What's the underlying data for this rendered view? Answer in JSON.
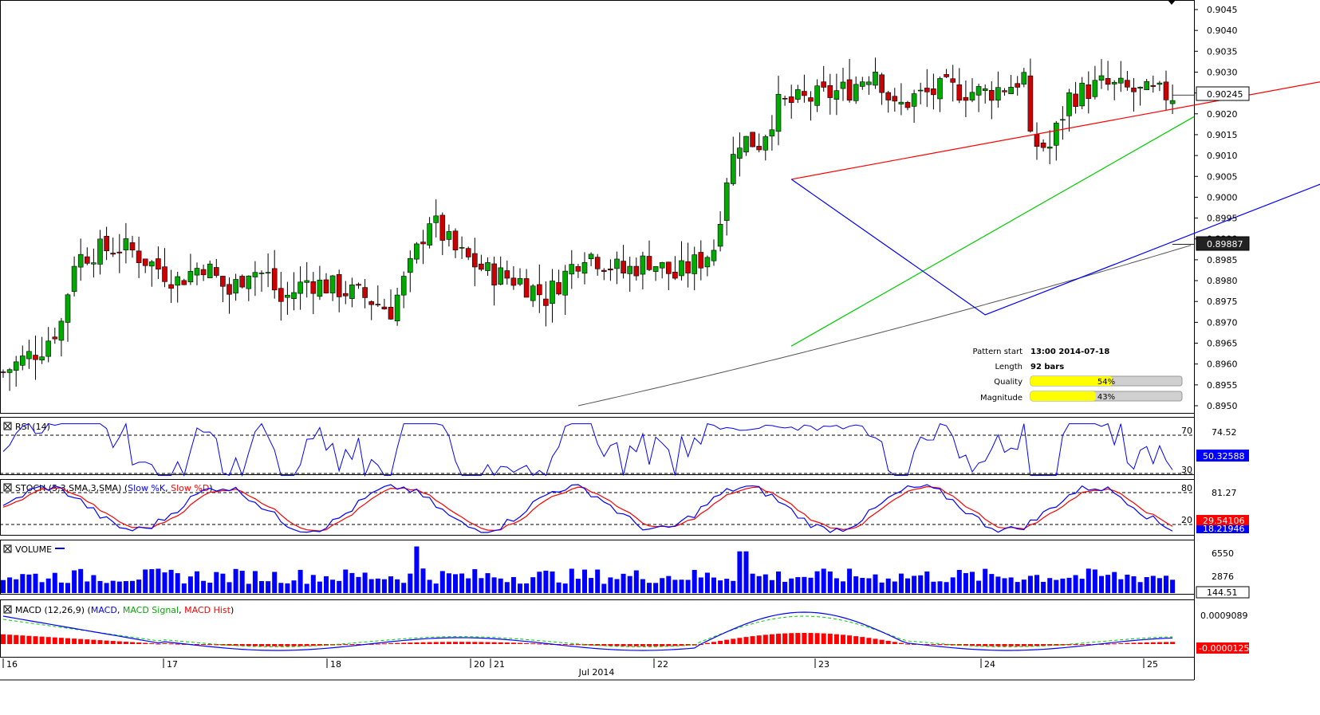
{
  "chart_data": {
    "type": "candlestick",
    "main": {
      "yaxis_ticks": [
        "0.9045",
        "0.9040",
        "0.9035",
        "0.9030",
        "0.9025",
        "0.9020",
        "0.9015",
        "0.9010",
        "0.9005",
        "0.9000",
        "0.8995",
        "0.8990",
        "0.8985",
        "0.8980",
        "0.8975",
        "0.8970",
        "0.8965",
        "0.8960",
        "0.8955",
        "0.8950"
      ],
      "ylim": [
        0.89465,
        0.9047
      ],
      "last_price": "0.90245",
      "ma_value": "0.89887",
      "resistance_line": {
        "color": "#ff0000",
        "from": [
          122,
          0.90043
        ],
        "to": [
          273,
          0.90474
        ]
      },
      "support_line": {
        "color": "#00cc00",
        "from": [
          122,
          0.89643
        ],
        "to": [
          293,
          0.90193
        ]
      },
      "zigzag": {
        "color": "#0000ff",
        "points": [
          [
            122,
            0.90043
          ],
          [
            152,
            0.89718
          ],
          [
            252,
            0.90322
          ],
          [
            302,
            0.90088
          ]
        ]
      }
    },
    "pattern_info": [
      {
        "label": "Pattern start",
        "value": "13:00 2014-07-18"
      },
      {
        "label": "Length",
        "value": "92 bars"
      },
      {
        "label": "Quality",
        "value": "54%",
        "fraction": 0.54
      },
      {
        "label": "Magnitude",
        "value": "43%",
        "fraction": 0.43
      }
    ],
    "panels": {
      "rsi": {
        "title": "RSI (14)",
        "levels": [
          "70",
          "30"
        ],
        "top_value": "74.52",
        "last_value": "50.32588"
      },
      "stoch": {
        "title": "STOCH (5,3,SMA,3,SMA)",
        "series": [
          "Slow %K",
          "Slow %D"
        ],
        "levels": [
          "80",
          "20"
        ],
        "top_value": "81.27",
        "last_k": "29.54106",
        "last_d": "18.21946"
      },
      "volume": {
        "title": "VOLUME",
        "ticks": [
          "6550",
          "2876"
        ],
        "last_value": "144.51"
      },
      "macd": {
        "title": "MACD (12,26,9)",
        "series": [
          "MACD",
          "MACD Signal",
          "MACD Hist"
        ],
        "top_value": "0.0009089",
        "last_value": "-0.0000125"
      }
    },
    "x_labels": [
      "16",
      "17",
      "18",
      "20",
      "21",
      "22",
      "23",
      "24",
      "25"
    ],
    "x_month": "Jul 2014"
  },
  "colors": {
    "bull": "#00aa00",
    "bear": "#cc0000",
    "rsi": "#0000ff",
    "stoch_k": "#0000ff",
    "stoch_d": "#ff0000",
    "volume": "#0000ff",
    "macd": "#0000ff",
    "signal": "#00cc00",
    "hist": "#ff0000",
    "ma": "#555555"
  }
}
